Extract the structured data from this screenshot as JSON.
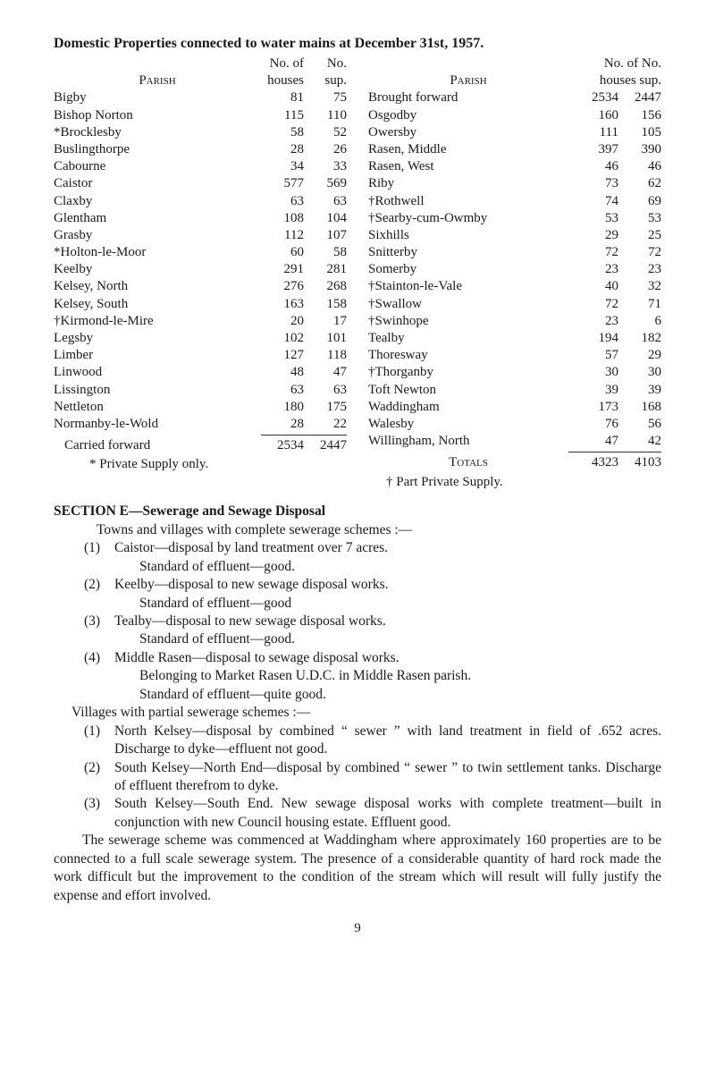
{
  "title": "Domestic Properties connected to water mains at December 31st, 1957.",
  "headers": {
    "no_of": "No. of",
    "no": "No.",
    "no_of_no": "No. of No.",
    "parish": "Parish",
    "houses": "houses",
    "sup": "sup.",
    "houses_sup": "houses sup."
  },
  "left_rows": [
    {
      "name": "Bigby",
      "h": "81",
      "s": "75"
    },
    {
      "name": "Bishop Norton",
      "h": "115",
      "s": "110"
    },
    {
      "name": "*Brocklesby",
      "h": "58",
      "s": "52"
    },
    {
      "name": "Buslingthorpe",
      "h": "28",
      "s": "26"
    },
    {
      "name": "Cabourne",
      "h": "34",
      "s": "33"
    },
    {
      "name": "Caistor",
      "h": "577",
      "s": "569"
    },
    {
      "name": "Claxby",
      "h": "63",
      "s": "63"
    },
    {
      "name": "Glentham",
      "h": "108",
      "s": "104"
    },
    {
      "name": "Grasby",
      "h": "112",
      "s": "107"
    },
    {
      "name": "*Holton-le-Moor",
      "h": "60",
      "s": "58"
    },
    {
      "name": "Keelby",
      "h": "291",
      "s": "281"
    },
    {
      "name": "Kelsey, North",
      "h": "276",
      "s": "268"
    },
    {
      "name": "Kelsey, South",
      "h": "163",
      "s": "158"
    },
    {
      "name": "†Kirmond-le-Mire",
      "h": "20",
      "s": "17"
    },
    {
      "name": "Legsby",
      "h": "102",
      "s": "101"
    },
    {
      "name": "Limber",
      "h": "127",
      "s": "118"
    },
    {
      "name": "Linwood",
      "h": "48",
      "s": "47"
    },
    {
      "name": "Lissington",
      "h": "63",
      "s": "63"
    },
    {
      "name": "Nettleton",
      "h": "180",
      "s": "175"
    },
    {
      "name": "Normanby-le-Wold",
      "h": "28",
      "s": "22"
    }
  ],
  "left_total": {
    "name": "Carried forward",
    "h": "2534",
    "s": "2447"
  },
  "left_footnote": "* Private Supply only.",
  "right_first": {
    "name": "Brought forward",
    "h": "2534",
    "s": "2447"
  },
  "right_rows": [
    {
      "name": "Osgodby",
      "h": "160",
      "s": "156"
    },
    {
      "name": "Owersby",
      "h": "111",
      "s": "105"
    },
    {
      "name": "Rasen, Middle",
      "h": "397",
      "s": "390"
    },
    {
      "name": "Rasen, West",
      "h": "46",
      "s": "46"
    },
    {
      "name": "Riby",
      "h": "73",
      "s": "62"
    },
    {
      "name": "†Rothwell",
      "h": "74",
      "s": "69"
    },
    {
      "name": "†Searby-cum-Owmby",
      "h": "53",
      "s": "53"
    },
    {
      "name": "Sixhills",
      "h": "29",
      "s": "25"
    },
    {
      "name": "Snitterby",
      "h": "72",
      "s": "72"
    },
    {
      "name": "Somerby",
      "h": "23",
      "s": "23"
    },
    {
      "name": "†Stainton-le-Vale",
      "h": "40",
      "s": "32"
    },
    {
      "name": "†Swallow",
      "h": "72",
      "s": "71"
    },
    {
      "name": "†Swinhope",
      "h": "23",
      "s": "6"
    },
    {
      "name": "Tealby",
      "h": "194",
      "s": "182"
    },
    {
      "name": "Thoresway",
      "h": "57",
      "s": "29"
    },
    {
      "name": "†Thorganby",
      "h": "30",
      "s": "30"
    },
    {
      "name": "Toft Newton",
      "h": "39",
      "s": "39"
    },
    {
      "name": "Waddingham",
      "h": "173",
      "s": "168"
    },
    {
      "name": "Walesby",
      "h": "76",
      "s": "56"
    },
    {
      "name": "Willingham, North",
      "h": "47",
      "s": "42"
    }
  ],
  "right_total": {
    "name": "Totals",
    "h": "4323",
    "s": "4103"
  },
  "right_footnote": "† Part Private Supply.",
  "section_header": "SECTION E—Sewerage and Sewage Disposal",
  "intro1": "Towns and villages with complete sewerage schemes :—",
  "towns": [
    {
      "n": "(1)",
      "lines": [
        "Caistor—disposal by land treatment over 7 acres.",
        "Standard of effluent—good."
      ]
    },
    {
      "n": "(2)",
      "lines": [
        "Keelby—disposal to new sewage disposal works.",
        "Standard of effluent—good"
      ]
    },
    {
      "n": "(3)",
      "lines": [
        "Tealby—disposal to new sewage disposal works.",
        "Standard of effluent—good."
      ]
    },
    {
      "n": "(4)",
      "lines": [
        "Middle Rasen—disposal to sewage disposal works.",
        "Belonging to Market Rasen U.D.C. in Middle Rasen parish.",
        "Standard of effluent—quite good."
      ]
    }
  ],
  "intro2": "Villages with partial sewerage schemes :—",
  "villages": [
    {
      "n": "(1)",
      "text": "North Kelsey—disposal by combined “ sewer ” with land treatment in field of .652 acres. Discharge to dyke—effluent not good."
    },
    {
      "n": "(2)",
      "text": "South Kelsey—North End—disposal by combined “ sewer ” to twin settlement tanks. Discharge of effluent therefrom to dyke."
    },
    {
      "n": "(3)",
      "text": "South Kelsey—South End. New sewage disposal works with complete treatment—built in conjunction with new Council housing estate. Effluent good."
    }
  ],
  "closing": "The sewerage scheme was commenced at Waddingham where approximately 160 properties are to be connected to a full scale sewerage system. The presence of a considerable quantity of hard rock made the work difficult but the improvement to the condition of the stream which will result will fully justify the expense and effort involved.",
  "page_number": "9"
}
